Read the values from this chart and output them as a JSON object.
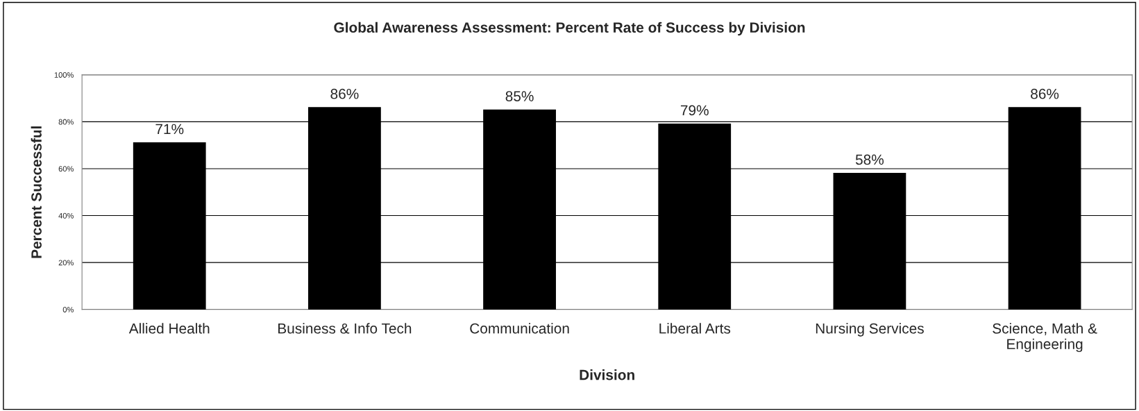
{
  "chart_data": {
    "type": "bar",
    "title": "Global Awareness Assessment: Percent Rate of Success by Division",
    "xlabel": "Division",
    "ylabel": "Percent Successful",
    "categories": [
      "Allied Health",
      "Business & Info Tech",
      "Communication",
      "Liberal Arts",
      "Nursing Services",
      "Science, Math &\nEngineering"
    ],
    "values": [
      71,
      86,
      85,
      79,
      58,
      86
    ],
    "value_labels": [
      "71%",
      "86%",
      "85%",
      "79%",
      "58%",
      "86%"
    ],
    "color": "#000000",
    "ylim": [
      0,
      100
    ],
    "yticks": [
      {
        "value": 0,
        "label": "0%"
      },
      {
        "value": 20,
        "label": "20%"
      },
      {
        "value": 40,
        "label": "40%"
      },
      {
        "value": 60,
        "label": "60%"
      },
      {
        "value": 80,
        "label": "80%"
      },
      {
        "value": 100,
        "label": "100%"
      }
    ],
    "grid": "y",
    "legend": false
  }
}
